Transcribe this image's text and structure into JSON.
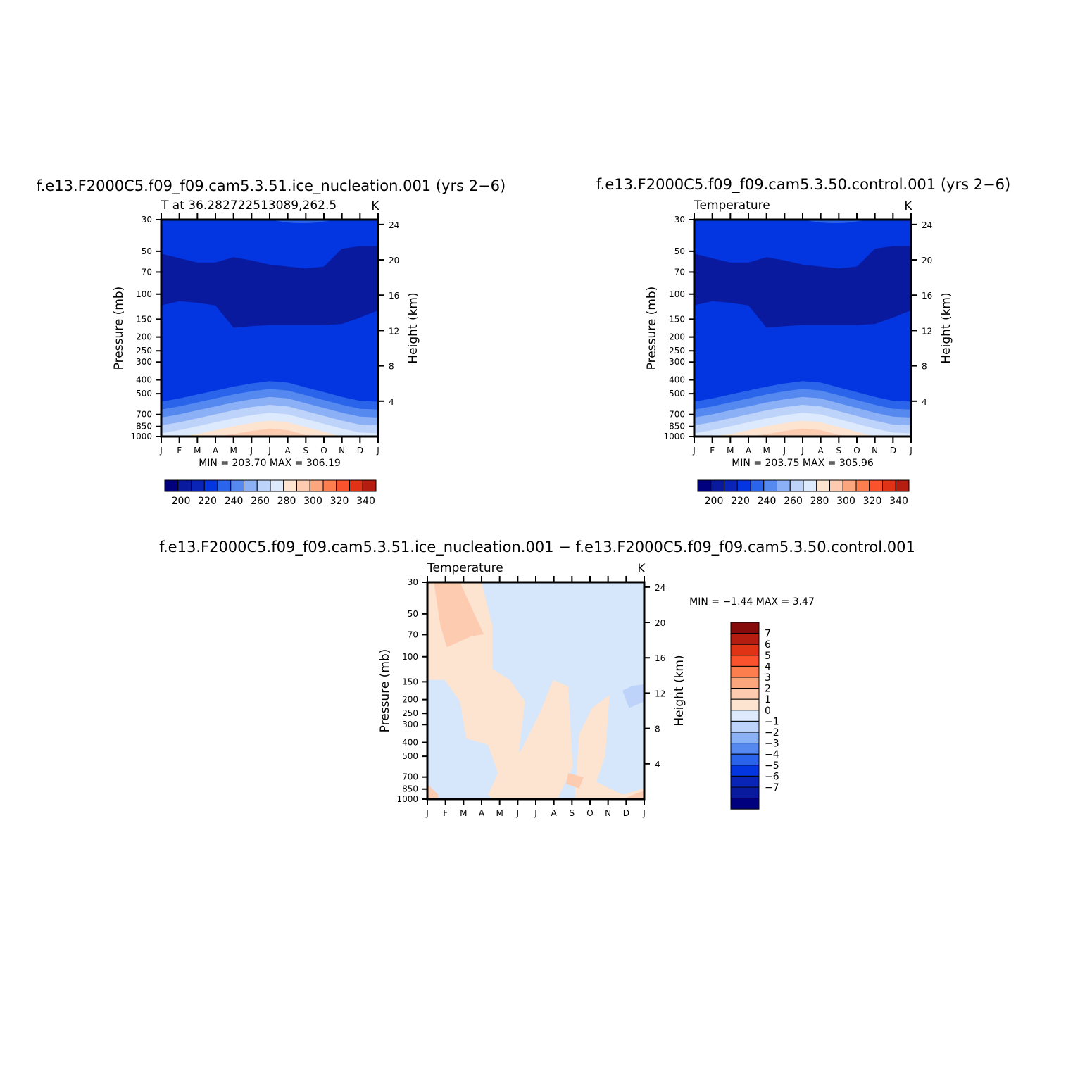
{
  "colors": {
    "blue_ramp": [
      "#00007f",
      "#0a1a9e",
      "#0a24b8",
      "#0335e0",
      "#2a64ea",
      "#5689f0",
      "#8cb0f5",
      "#bed3fa",
      "#dde9fc"
    ],
    "red_ramp": [
      "#fde4d0",
      "#fdcbb0",
      "#fca67e",
      "#fc7e4f",
      "#f9522c",
      "#e03214",
      "#b51d10",
      "#850b0a"
    ],
    "level_field_colors": [
      "#0a1a9e",
      "#0335e0",
      "#2a64ea",
      "#5689f0",
      "#8cb0f5",
      "#bed3fa",
      "#dde9fc",
      "#fde4d0",
      "#fdcbb0",
      "#fca67e",
      "#fc7e4f"
    ]
  },
  "chart_data": [
    {
      "type": "heatmap",
      "case_title": "f.e13.F2000C5.f09_f09.cam5.3.51.ice_nucleation.001 (yrs 2−6)",
      "title": "T at 36.282722513089,262.5",
      "units": "K",
      "xlabel": "",
      "ylabel": "Pressure (mb)",
      "ylabel_right": "Height (km)",
      "x_ticks": [
        "J",
        "F",
        "M",
        "A",
        "M",
        "J",
        "J",
        "A",
        "S",
        "O",
        "N",
        "D",
        "J"
      ],
      "y_ticks": [
        "30",
        "50",
        "70",
        "100",
        "150",
        "200",
        "250",
        "300",
        "400",
        "500",
        "700",
        "850",
        "1000"
      ],
      "y_right_ticks": [
        "24",
        "20",
        "16",
        "12",
        "8",
        "4"
      ],
      "stats": "MIN = 203.70  MAX = 306.19",
      "min": 203.7,
      "max": 306.19,
      "colorbar_labels": [
        "200",
        "220",
        "240",
        "260",
        "280",
        "300",
        "320",
        "340"
      ],
      "surface_temperature_K": [
        274,
        278,
        283,
        288,
        293,
        297,
        300,
        298,
        292,
        286,
        280,
        275,
        274
      ],
      "tropopause_temperature_K": [
        210,
        209,
        207,
        205,
        204,
        204,
        204,
        205,
        206,
        207,
        209,
        210,
        210
      ]
    },
    {
      "type": "heatmap",
      "case_title": "f.e13.F2000C5.f09_f09.cam5.3.50.control.001 (yrs 2−6)",
      "title": "Temperature",
      "units": "K",
      "xlabel": "",
      "ylabel": "Pressure (mb)",
      "ylabel_right": "Height (km)",
      "x_ticks": [
        "J",
        "F",
        "M",
        "A",
        "M",
        "J",
        "J",
        "A",
        "S",
        "O",
        "N",
        "D",
        "J"
      ],
      "y_ticks": [
        "30",
        "50",
        "70",
        "100",
        "150",
        "200",
        "250",
        "300",
        "400",
        "500",
        "700",
        "850",
        "1000"
      ],
      "y_right_ticks": [
        "24",
        "20",
        "16",
        "12",
        "8",
        "4"
      ],
      "stats": "MIN = 203.75  MAX = 305.96",
      "min": 203.75,
      "max": 305.96,
      "colorbar_labels": [
        "200",
        "220",
        "240",
        "260",
        "280",
        "300",
        "320",
        "340"
      ],
      "surface_temperature_K": [
        274,
        278,
        283,
        288,
        293,
        297,
        300,
        298,
        292,
        286,
        280,
        275,
        274
      ],
      "tropopause_temperature_K": [
        210,
        209,
        207,
        205,
        204,
        204,
        204,
        205,
        206,
        207,
        209,
        210,
        210
      ]
    },
    {
      "type": "heatmap",
      "case_title": "f.e13.F2000C5.f09_f09.cam5.3.51.ice_nucleation.001 − f.e13.F2000C5.f09_f09.cam5.3.50.control.001",
      "title": "Temperature",
      "units": "K",
      "xlabel": "",
      "ylabel": "Pressure (mb)",
      "ylabel_right": "Height (km)",
      "x_ticks": [
        "J",
        "F",
        "M",
        "A",
        "M",
        "J",
        "J",
        "A",
        "S",
        "O",
        "N",
        "D",
        "J"
      ],
      "y_ticks": [
        "30",
        "50",
        "70",
        "100",
        "150",
        "200",
        "250",
        "300",
        "400",
        "500",
        "700",
        "850",
        "1000"
      ],
      "y_right_ticks": [
        "24",
        "20",
        "16",
        "12",
        "8",
        "4"
      ],
      "stats": "MIN =   −1.44 MAX =     3.47",
      "min": -1.44,
      "max": 3.47,
      "colorbar_labels": [
        "7",
        "6",
        "5",
        "4",
        "3",
        "2",
        "1",
        "0",
        "−1",
        "−2",
        "−3",
        "−4",
        "−5",
        "−6",
        "−7"
      ]
    }
  ]
}
